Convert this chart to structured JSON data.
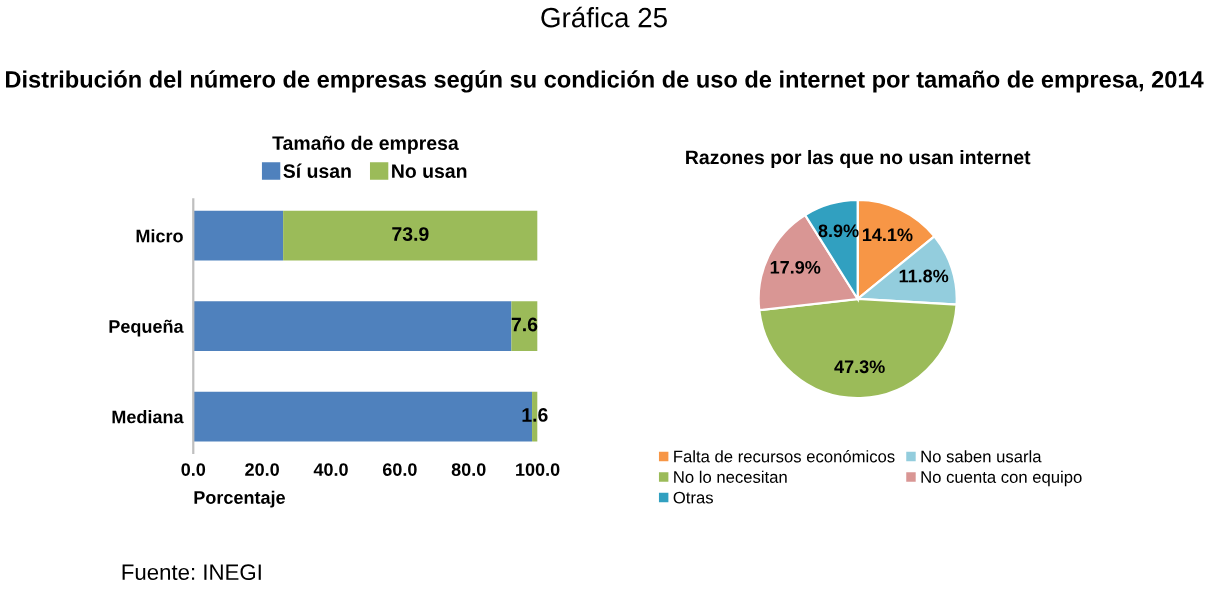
{
  "chart_data": [
    {
      "type": "bar",
      "orientation": "horizontal",
      "stacked": true,
      "title": "Gráfica 25",
      "subtitle": "Distribución del número de empresas según su condición de uso de internet por tamaño de empresa, 2014",
      "legend_title": "Tamaño de empresa",
      "xlabel": "Porcentaje",
      "categories": [
        "Micro",
        "Pequeña",
        "Mediana"
      ],
      "series": [
        {
          "name": "Sí usan",
          "color": "#4f81bd",
          "values": [
            26.1,
            92.4,
            98.4
          ]
        },
        {
          "name": "No usan",
          "color": "#9bbb59",
          "values": [
            73.9,
            7.6,
            1.6
          ],
          "value_labels": [
            "73.9",
            "7.6",
            "1.6"
          ]
        }
      ],
      "xlim": [
        0,
        100
      ],
      "xticks": [
        {
          "value": 0,
          "label": "0.0"
        },
        {
          "value": 20,
          "label": "20.0"
        },
        {
          "value": 40,
          "label": "40.0"
        },
        {
          "value": 60,
          "label": "60.0"
        },
        {
          "value": 80,
          "label": "80.0"
        },
        {
          "value": 100,
          "label": "100.0"
        }
      ],
      "legend": "top",
      "grid": false,
      "annotations": [
        "Fuente: INEGI"
      ]
    },
    {
      "type": "pie",
      "title": "Razones por las que no usan internet",
      "categories": [
        "Falta de recursos económicos",
        "No saben usarla",
        "No lo necesitan",
        "No cuenta con equipo",
        "Otras"
      ],
      "values": [
        14.1,
        11.8,
        47.3,
        17.9,
        8.9
      ],
      "colors": [
        "#f79646",
        "#93cddd",
        "#9bbb59",
        "#d99694",
        "#31a0c0"
      ],
      "value_labels": [
        "14.1%",
        "11.8%",
        "47.3%",
        "17.9%",
        "8.9%"
      ],
      "legend": "bottom"
    }
  ]
}
